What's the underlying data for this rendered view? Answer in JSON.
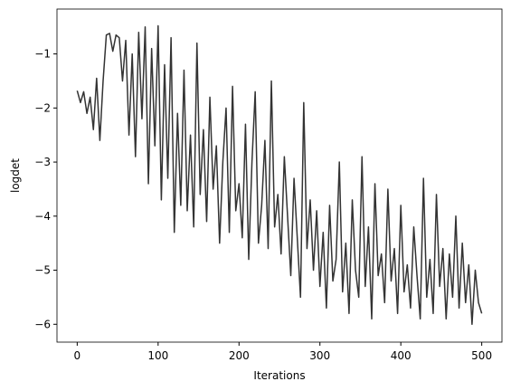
{
  "chart_data": {
    "type": "line",
    "x_label": "Iterations",
    "y_label": "logdet",
    "x": [
      0,
      4,
      8,
      12,
      16,
      20,
      24,
      28,
      32,
      36,
      40,
      44,
      48,
      52,
      56,
      60,
      64,
      68,
      72,
      76,
      80,
      84,
      88,
      92,
      96,
      100,
      104,
      108,
      112,
      116,
      120,
      124,
      128,
      132,
      136,
      140,
      144,
      148,
      152,
      156,
      160,
      164,
      168,
      172,
      176,
      180,
      184,
      188,
      192,
      196,
      200,
      204,
      208,
      212,
      216,
      220,
      224,
      228,
      232,
      236,
      240,
      244,
      248,
      252,
      256,
      260,
      264,
      268,
      272,
      276,
      280,
      284,
      288,
      292,
      296,
      300,
      304,
      308,
      312,
      316,
      320,
      324,
      328,
      332,
      336,
      340,
      344,
      348,
      352,
      356,
      360,
      364,
      368,
      372,
      376,
      380,
      384,
      388,
      392,
      396,
      400,
      404,
      408,
      412,
      416,
      420,
      424,
      428,
      432,
      436,
      440,
      444,
      448,
      452,
      456,
      460,
      464,
      468,
      472,
      476,
      480,
      484,
      488,
      492,
      496,
      500
    ],
    "series": [
      {
        "name": "logdet",
        "color": "#333333",
        "values": [
          -1.68,
          -1.9,
          -1.7,
          -2.1,
          -1.8,
          -2.4,
          -1.45,
          -2.6,
          -1.5,
          -0.65,
          -0.62,
          -0.95,
          -0.65,
          -0.7,
          -1.5,
          -0.75,
          -2.5,
          -1.0,
          -2.9,
          -0.6,
          -2.2,
          -0.5,
          -3.4,
          -0.9,
          -2.7,
          -0.48,
          -3.7,
          -1.2,
          -3.3,
          -0.7,
          -4.3,
          -2.1,
          -3.8,
          -1.3,
          -3.9,
          -2.5,
          -4.2,
          -0.8,
          -3.6,
          -2.4,
          -4.1,
          -1.8,
          -3.5,
          -2.7,
          -4.5,
          -3.0,
          -2.0,
          -4.3,
          -1.6,
          -3.9,
          -3.4,
          -4.4,
          -2.3,
          -4.8,
          -3.0,
          -1.7,
          -4.5,
          -3.8,
          -2.6,
          -4.6,
          -1.5,
          -4.2,
          -3.6,
          -4.7,
          -2.9,
          -4.0,
          -5.1,
          -3.3,
          -4.4,
          -5.5,
          -1.9,
          -4.6,
          -3.7,
          -5.0,
          -3.9,
          -5.3,
          -4.3,
          -5.7,
          -3.8,
          -5.2,
          -4.8,
          -3.0,
          -5.4,
          -4.5,
          -5.8,
          -3.7,
          -5.0,
          -5.5,
          -2.9,
          -5.3,
          -4.2,
          -5.9,
          -3.4,
          -5.1,
          -4.7,
          -5.6,
          -3.5,
          -5.2,
          -4.6,
          -5.8,
          -3.8,
          -5.4,
          -4.9,
          -5.7,
          -4.2,
          -5.1,
          -5.9,
          -3.3,
          -5.5,
          -4.8,
          -5.8,
          -3.6,
          -5.3,
          -4.6,
          -5.9,
          -4.7,
          -5.5,
          -4.0,
          -5.7,
          -4.5,
          -5.6,
          -4.9,
          -6.0,
          -5.0,
          -5.6,
          -5.8
        ]
      }
    ],
    "xlim": [
      -25,
      525
    ],
    "xticks": [
      0,
      100,
      200,
      300,
      400,
      500
    ],
    "ylim": [
      -6.33,
      -0.17
    ],
    "yticks": [
      {
        "value": -6,
        "label": "−6"
      },
      {
        "value": -5,
        "label": "−5"
      },
      {
        "value": -4,
        "label": "−4"
      },
      {
        "value": -3,
        "label": "−3"
      },
      {
        "value": -2,
        "label": "−2"
      },
      {
        "value": -1,
        "label": "−1"
      }
    ]
  }
}
